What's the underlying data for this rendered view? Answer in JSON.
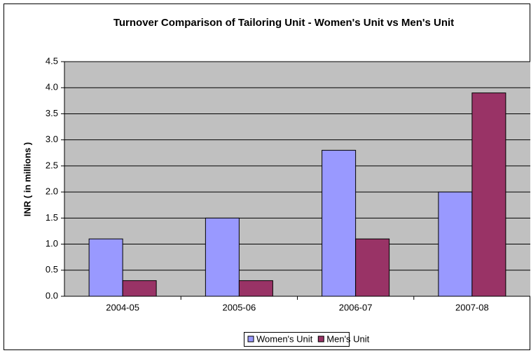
{
  "chart_data": {
    "type": "bar",
    "title": "Turnover Comparison of Tailoring Unit - Women's Unit vs Men's Unit",
    "y_label": "INR ( in millions )",
    "categories": [
      "2004-05",
      "2005-06",
      "2006-07",
      "2007-08"
    ],
    "series": [
      {
        "name": "Women's Unit",
        "color": "#9999ff",
        "values": [
          1.1,
          1.5,
          2.8,
          2.0
        ]
      },
      {
        "name": "Men's Unit",
        "color": "#993366",
        "values": [
          0.3,
          0.3,
          1.1,
          3.9
        ]
      }
    ],
    "ylim": [
      0,
      4.5
    ],
    "yticks": [
      {
        "value": 0,
        "label": "0.0"
      },
      0.5,
      {
        "value": 1,
        "label": "1.0"
      },
      1.5,
      {
        "value": 2,
        "label": "2.0"
      },
      2.5,
      {
        "value": 3,
        "label": "3.0"
      },
      3.5,
      {
        "value": 4,
        "label": "4.0"
      },
      4.5
    ],
    "grid": true,
    "legend": "bottom"
  }
}
